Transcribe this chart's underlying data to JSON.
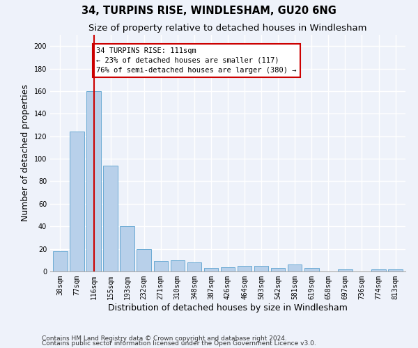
{
  "title1": "34, TURPINS RISE, WINDLESHAM, GU20 6NG",
  "title2": "Size of property relative to detached houses in Windlesham",
  "xlabel": "Distribution of detached houses by size in Windlesham",
  "ylabel": "Number of detached properties",
  "categories": [
    "38sqm",
    "77sqm",
    "116sqm",
    "155sqm",
    "193sqm",
    "232sqm",
    "271sqm",
    "310sqm",
    "348sqm",
    "387sqm",
    "426sqm",
    "464sqm",
    "503sqm",
    "542sqm",
    "581sqm",
    "619sqm",
    "658sqm",
    "697sqm",
    "736sqm",
    "774sqm",
    "813sqm"
  ],
  "values": [
    18,
    124,
    160,
    94,
    40,
    20,
    9,
    10,
    8,
    3,
    4,
    5,
    5,
    3,
    6,
    3,
    0,
    2,
    0,
    2,
    2
  ],
  "bar_color": "#b8d0ea",
  "bar_edge_color": "#6aaad4",
  "vline_x_index": 2,
  "vline_color": "#cc0000",
  "annotation_text": "34 TURPINS RISE: 111sqm\n← 23% of detached houses are smaller (117)\n76% of semi-detached houses are larger (380) →",
  "annotation_box_facecolor": "#ffffff",
  "annotation_box_edgecolor": "#cc0000",
  "footer1": "Contains HM Land Registry data © Crown copyright and database right 2024.",
  "footer2": "Contains public sector information licensed under the Open Government Licence v3.0.",
  "ylim": [
    0,
    210
  ],
  "yticks": [
    0,
    20,
    40,
    60,
    80,
    100,
    120,
    140,
    160,
    180,
    200
  ],
  "background_color": "#eef2fa",
  "grid_color": "#ffffff",
  "title1_fontsize": 10.5,
  "title2_fontsize": 9.5,
  "xlabel_fontsize": 9,
  "ylabel_fontsize": 9,
  "tick_fontsize": 7,
  "annotation_fontsize": 7.5,
  "footer_fontsize": 6.5
}
